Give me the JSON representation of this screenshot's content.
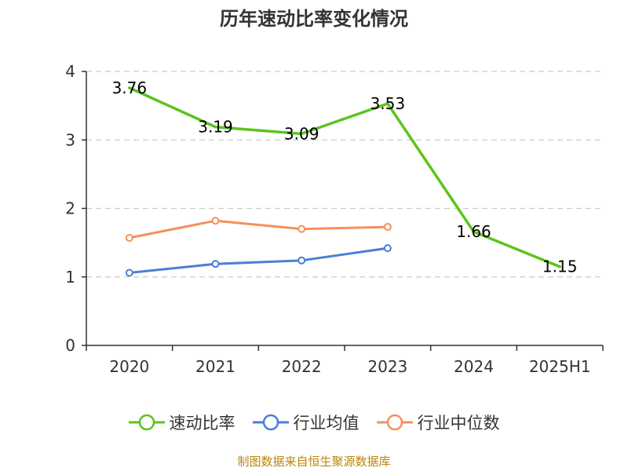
{
  "colors": {
    "series": [
      "#5bc41e",
      "#4a7fd6",
      "#f5905a"
    ],
    "grid": "#cccccc",
    "axis": "#333333",
    "source_text": "#b8860b"
  },
  "source_note": "制图数据来自恒生聚源数据库",
  "chart_data": {
    "type": "line",
    "title": "历年速动比率变化情况",
    "categories": [
      "2020",
      "2021",
      "2022",
      "2023",
      "2024",
      "2025H1"
    ],
    "ylim": [
      0,
      4
    ],
    "yticks": [
      "0",
      "1",
      "2",
      "3",
      "4"
    ],
    "grid": true,
    "legend_position": "bottom",
    "series": [
      {
        "name": "速动比率",
        "values": [
          3.76,
          3.19,
          3.09,
          3.53,
          1.66,
          1.15
        ],
        "labels": [
          "3.76",
          "3.19",
          "3.09",
          "3.53",
          "1.66",
          "1.15"
        ],
        "markers": false
      },
      {
        "name": "行业均值",
        "values": [
          1.06,
          1.19,
          1.24,
          1.42,
          null,
          null
        ],
        "markers": true
      },
      {
        "name": "行业中位数",
        "values": [
          1.57,
          1.82,
          1.7,
          1.73,
          null,
          null
        ],
        "markers": true
      }
    ]
  }
}
